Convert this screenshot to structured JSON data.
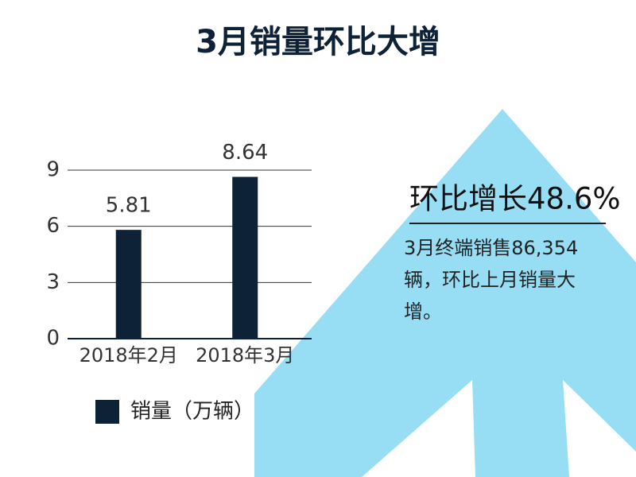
{
  "chart_data": {
    "type": "bar",
    "title": "3月销量环比大增",
    "categories": [
      "2018年2月",
      "2018年3月"
    ],
    "series": [
      {
        "name": "销量（万辆）",
        "color": "#0d2137",
        "values": [
          5.81,
          8.64
        ]
      }
    ],
    "ylim": [
      0,
      9
    ],
    "yticks": [
      0,
      3,
      6,
      9
    ],
    "grid": true,
    "annotation": {
      "title": "环比增长48.6%",
      "text": "3月终端销售86,354辆，环比上月销量大增。"
    }
  }
}
